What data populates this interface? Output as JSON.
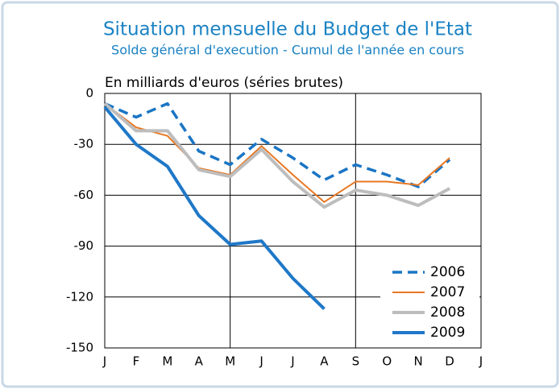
{
  "chart_data": {
    "type": "line",
    "title": "Situation mensuelle du Budget de l'Etat",
    "subtitle": "Solde général d'execution - Cumul de l'année en cours",
    "ylabel": "En milliards d'euros (séries brutes)",
    "categories": [
      "J",
      "F",
      "M",
      "A",
      "M",
      "J",
      "J",
      "A",
      "S",
      "O",
      "N",
      "D",
      "J"
    ],
    "series": [
      {
        "name": "2006",
        "color": "#1a75c4",
        "dashed": true,
        "values": [
          -6,
          -14,
          -6,
          -34,
          -42,
          -27,
          -38,
          -51,
          -42,
          -48,
          -55,
          -39,
          null
        ]
      },
      {
        "name": "2007",
        "color": "#e87722",
        "values": [
          -6,
          -20,
          -25,
          -44,
          -48,
          -31,
          -48,
          -64,
          -52,
          -52,
          -54,
          -38,
          null
        ]
      },
      {
        "name": "2008",
        "color": "#bdbdbd",
        "values": [
          -6,
          -22,
          -22,
          -45,
          -49,
          -33,
          -52,
          -67,
          -57,
          -60,
          -66,
          -56,
          null
        ]
      },
      {
        "name": "2009",
        "color": "#1f78c8",
        "values": [
          -8,
          -30,
          -43,
          -72,
          -89,
          -87,
          -109,
          -127,
          null,
          null,
          null,
          null,
          null
        ]
      }
    ],
    "ylim": [
      -150,
      0
    ],
    "yticks": [
      0,
      -30,
      -60,
      -90,
      -120,
      -150
    ],
    "grid": true,
    "legend": "lower right"
  }
}
